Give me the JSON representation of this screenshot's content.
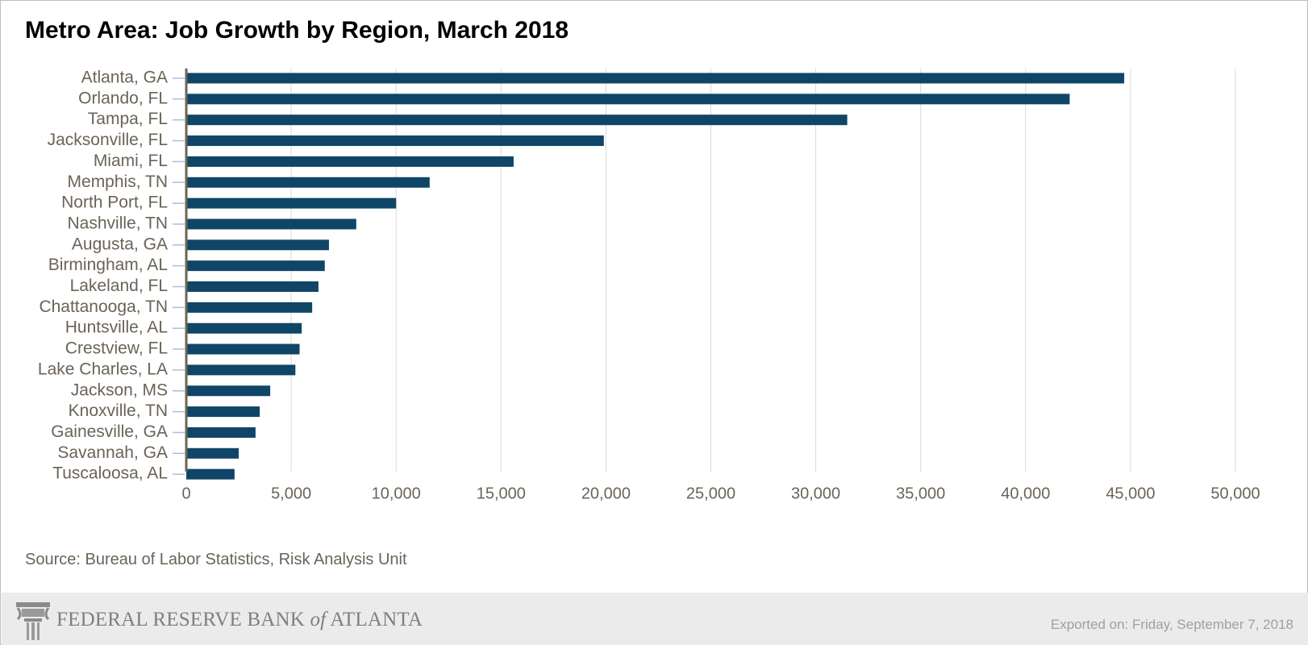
{
  "colors": {
    "bar": "#0f4567",
    "label": "#6b6357",
    "grid": "#d9d9d9",
    "axis_line": "#6e6656",
    "tick": "#a9bfd6"
  },
  "footer": {
    "logo_main": "FEDERAL RESERVE BANK ",
    "logo_of": "of",
    "logo_city": " ATLANTA",
    "logo_icon": "column-capital-icon",
    "exported": "Exported on: Friday, September 7, 2018"
  },
  "chart_data": {
    "type": "bar",
    "orientation": "horizontal",
    "title": "Metro Area: Job Growth by Region, March 2018",
    "source": "Source: Bureau of Labor Statistics, Risk Analysis Unit",
    "categories": [
      "Atlanta, GA",
      "Orlando, FL",
      "Tampa, FL",
      "Jacksonville, FL",
      "Miami, FL",
      "Memphis, TN",
      "North Port, FL",
      "Nashville, TN",
      "Augusta, GA",
      "Birmingham, AL",
      "Lakeland, FL",
      "Chattanooga, TN",
      "Huntsville, AL",
      "Crestview, FL",
      "Lake Charles, LA",
      "Jackson, MS",
      "Knoxville, TN",
      "Gainesville, GA",
      "Savannah, GA",
      "Tuscaloosa, AL"
    ],
    "values": [
      44700,
      42100,
      31500,
      19900,
      15600,
      11600,
      10000,
      8100,
      6800,
      6600,
      6300,
      6000,
      5500,
      5400,
      5200,
      4000,
      3500,
      3300,
      2500,
      2300
    ],
    "xlim": [
      0,
      50000
    ],
    "xticks": [
      0,
      5000,
      10000,
      15000,
      20000,
      25000,
      30000,
      35000,
      40000,
      45000,
      50000
    ],
    "xtick_labels": [
      "0",
      "5,000",
      "10,000",
      "15,000",
      "20,000",
      "25,000",
      "30,000",
      "35,000",
      "40,000",
      "45,000",
      "50,000"
    ],
    "grid": "vertical",
    "legend": "none"
  }
}
